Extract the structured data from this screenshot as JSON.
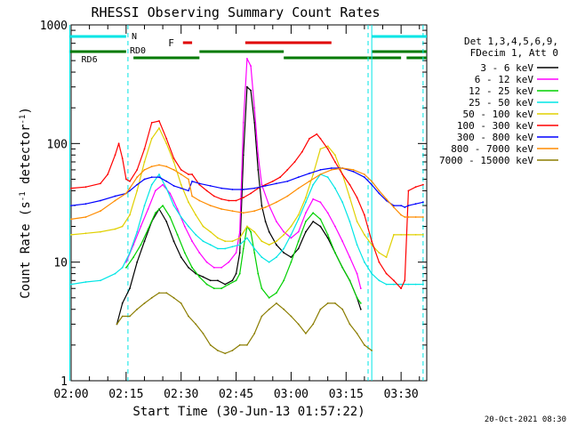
{
  "chart_data": {
    "type": "line",
    "title": "RHESSI Observing Summary Count Rates",
    "xlabel": "Start Time (30-Jun-13 01:57:22)",
    "ylabel_parts": [
      "Count Rate (s",
      "-1",
      " detector",
      "-1",
      ")"
    ],
    "yscale": "log",
    "ylim": [
      1,
      1000
    ],
    "xlim": [
      0,
      97
    ],
    "x_unit": "minutes after 02:00 UT",
    "x_tick_labels": [
      "02:00",
      "02:15",
      "02:30",
      "02:45",
      "03:00",
      "03:15",
      "03:30"
    ],
    "x_tick_minutes": [
      0,
      15,
      30,
      45,
      60,
      75,
      90
    ],
    "y_tick_labels": [
      "1",
      "10",
      "100",
      "1000"
    ],
    "y_tick_values": [
      1,
      10,
      100,
      1000
    ],
    "legend_title": [
      "Det 1,3,4,5,6,9,",
      "FDecim 1, Att 0"
    ],
    "legend_position": "right",
    "timestamp": "20-Oct-2021 08:30",
    "flag_labels": {
      "n": "N",
      "f": "F",
      "rd0": "RD0",
      "rd6": "RD6"
    },
    "flags": {
      "night": {
        "color": "#00e5e5",
        "intervals": [
          [
            -0.5,
            15
          ],
          [
            82,
            97
          ]
        ]
      },
      "flare": {
        "color": "#e00000",
        "intervals": [
          [
            30.5,
            33
          ],
          [
            47.5,
            71
          ]
        ]
      },
      "rd0": {
        "color": "#007a00",
        "intervals": [
          [
            -0.5,
            15
          ],
          [
            35,
            58
          ],
          [
            82,
            97
          ]
        ]
      },
      "rd6": {
        "color": "#007a00",
        "intervals": [
          [
            17,
            35
          ],
          [
            58,
            90
          ],
          [
            91.5,
            97
          ]
        ]
      }
    },
    "night_markers": [
      15.5,
      81,
      96
    ],
    "series": [
      {
        "name": "3 - 6 keV",
        "color": "#000000",
        "x": [
          12.5,
          14,
          16,
          18,
          20,
          22,
          24,
          26,
          28,
          30,
          32,
          34,
          36,
          38,
          40,
          42,
          44,
          45,
          46,
          47,
          48,
          49,
          50,
          51,
          52,
          53,
          54,
          56,
          58,
          60,
          62,
          64,
          66,
          68,
          70,
          72,
          74,
          76,
          78,
          79
        ],
        "y": [
          3,
          4.5,
          6,
          10,
          15,
          22,
          28,
          22,
          15,
          11,
          9,
          8,
          7.5,
          7,
          7,
          6.5,
          7,
          8,
          12,
          80,
          300,
          280,
          150,
          60,
          30,
          22,
          18,
          14,
          12,
          11,
          13,
          18,
          22,
          20,
          16,
          12,
          9,
          7,
          5,
          4
        ]
      },
      {
        "name": "6 - 12 keV",
        "color": "#ff00ff",
        "x": [
          15,
          17,
          19,
          21,
          23,
          25,
          27,
          29,
          31,
          33,
          35,
          37,
          39,
          41,
          43,
          45,
          46,
          47,
          48,
          49,
          50,
          51,
          52,
          54,
          56,
          58,
          60,
          62,
          64,
          66,
          68,
          70,
          72,
          74,
          76,
          78,
          79
        ],
        "y": [
          10,
          14,
          20,
          28,
          40,
          45,
          38,
          28,
          20,
          15,
          12,
          10,
          9,
          9,
          10,
          12,
          18,
          150,
          520,
          450,
          200,
          80,
          45,
          30,
          22,
          18,
          16,
          18,
          26,
          34,
          32,
          26,
          20,
          15,
          11,
          8,
          6
        ]
      },
      {
        "name": "12 - 25 keV",
        "color": "#00d000",
        "x": [
          15,
          17,
          19,
          21,
          23,
          25,
          27,
          29,
          31,
          33,
          35,
          37,
          39,
          41,
          43,
          45,
          46,
          47,
          48,
          49,
          50,
          51,
          52,
          54,
          56,
          58,
          60,
          62,
          64,
          66,
          68,
          70,
          72,
          74,
          76,
          78,
          79
        ],
        "y": [
          9,
          11,
          14,
          19,
          26,
          30,
          24,
          17,
          12,
          9,
          7.5,
          6.5,
          6,
          6,
          6.5,
          7,
          8,
          13,
          20,
          18,
          12,
          8,
          6,
          5,
          5.5,
          7,
          10,
          15,
          22,
          26,
          23,
          17,
          12,
          9,
          7,
          5,
          4.5
        ]
      },
      {
        "name": "25 - 50 keV",
        "color": "#00e5e5",
        "x": [
          0,
          4,
          8,
          12,
          14,
          16,
          18,
          20,
          22,
          24,
          26,
          28,
          30,
          32,
          34,
          36,
          38,
          40,
          42,
          44,
          46,
          48,
          50,
          52,
          54,
          56,
          58,
          60,
          62,
          64,
          66,
          68,
          70,
          72,
          74,
          76,
          78,
          80,
          82,
          84,
          86,
          88,
          90,
          92,
          94,
          96
        ],
        "y": [
          6.5,
          6.8,
          7,
          8,
          9,
          12,
          18,
          30,
          45,
          55,
          42,
          30,
          24,
          20,
          17,
          15,
          14,
          13,
          13,
          13.5,
          14,
          16,
          13,
          11,
          10,
          11,
          13,
          17,
          23,
          32,
          45,
          55,
          52,
          42,
          32,
          22,
          14,
          10,
          8,
          7,
          6.5,
          6.5,
          6.5,
          6.5,
          6.5,
          6.5
        ]
      },
      {
        "name": "50 - 100 keV",
        "color": "#e0d000",
        "x": [
          0,
          4,
          8,
          12,
          14,
          16,
          18,
          20,
          22,
          24,
          26,
          28,
          30,
          32,
          34,
          36,
          38,
          40,
          42,
          44,
          46,
          48,
          50,
          52,
          54,
          56,
          58,
          60,
          62,
          64,
          66,
          68,
          70,
          72,
          74,
          76,
          78,
          80,
          82,
          84,
          86,
          88,
          90,
          92,
          94,
          96
        ],
        "y": [
          17,
          17.5,
          18,
          19,
          20,
          25,
          40,
          70,
          110,
          135,
          100,
          70,
          45,
          32,
          25,
          20,
          18,
          16,
          15,
          15,
          16,
          20,
          18,
          15,
          14,
          15,
          17,
          20,
          25,
          35,
          55,
          90,
          95,
          80,
          55,
          35,
          22,
          17,
          14,
          12,
          11,
          17,
          17,
          17,
          17,
          17
        ]
      },
      {
        "name": "100 - 300 keV",
        "color": "#ff0000",
        "x": [
          0,
          4,
          8,
          10,
          12,
          13,
          14,
          15,
          16,
          18,
          20,
          22,
          24,
          26,
          28,
          30,
          32,
          33,
          35,
          37,
          39,
          41,
          43,
          45,
          47,
          49,
          51,
          53,
          55,
          57,
          59,
          61,
          63,
          65,
          67,
          68,
          70,
          72,
          74,
          76,
          78,
          80,
          82,
          84,
          86,
          88,
          90,
          91,
          92,
          94,
          96
        ],
        "y": [
          42,
          43,
          46,
          55,
          80,
          100,
          75,
          50,
          48,
          60,
          90,
          150,
          155,
          110,
          75,
          60,
          55,
          55,
          45,
          40,
          36,
          34,
          33,
          33,
          35,
          38,
          42,
          45,
          48,
          52,
          60,
          70,
          85,
          110,
          120,
          110,
          90,
          70,
          55,
          45,
          35,
          25,
          15,
          10,
          8,
          7,
          6,
          7,
          40,
          43,
          45
        ]
      },
      {
        "name": "300 - 800 keV",
        "color": "#0000ff",
        "x": [
          0,
          4,
          8,
          12,
          15,
          16,
          18,
          20,
          22,
          24,
          26,
          28,
          30,
          32,
          33,
          35,
          38,
          41,
          44,
          47,
          50,
          53,
          56,
          59,
          62,
          65,
          68,
          71,
          74,
          77,
          80,
          82,
          84,
          86,
          88,
          90,
          91,
          92,
          94,
          96
        ],
        "y": [
          30,
          31,
          33,
          36,
          38,
          40,
          45,
          50,
          52,
          52,
          48,
          44,
          42,
          40,
          48,
          46,
          44,
          42,
          41,
          41,
          42,
          44,
          46,
          48,
          52,
          56,
          60,
          62,
          62,
          58,
          52,
          45,
          38,
          33,
          30,
          30,
          29,
          30,
          31,
          32
        ]
      },
      {
        "name": "800 - 7000 keV",
        "color": "#ff8c00",
        "x": [
          0,
          4,
          8,
          12,
          15,
          16,
          18,
          20,
          22,
          24,
          26,
          28,
          30,
          32,
          33,
          35,
          38,
          41,
          44,
          47,
          50,
          53,
          56,
          59,
          62,
          65,
          68,
          71,
          74,
          77,
          80,
          82,
          84,
          86,
          88,
          90,
          91,
          92,
          94,
          96
        ],
        "y": [
          23,
          24,
          27,
          33,
          38,
          42,
          52,
          60,
          64,
          66,
          64,
          60,
          55,
          50,
          36,
          33,
          30,
          28,
          27,
          26,
          27,
          29,
          32,
          36,
          42,
          48,
          55,
          60,
          62,
          60,
          55,
          48,
          40,
          34,
          29,
          25,
          24,
          24,
          24,
          24
        ]
      },
      {
        "name": "7000 - 15000 keV",
        "color": "#8b7d00",
        "x": [
          12.5,
          14,
          16,
          18,
          20,
          22,
          24,
          26,
          28,
          30,
          32,
          34,
          36,
          38,
          40,
          42,
          44,
          46,
          48,
          50,
          52,
          54,
          56,
          58,
          60,
          62,
          64,
          66,
          68,
          70,
          72,
          74,
          76,
          78,
          80,
          82
        ],
        "y": [
          3,
          3.5,
          3.5,
          4,
          4.5,
          5,
          5.5,
          5.5,
          5,
          4.5,
          3.5,
          3,
          2.5,
          2,
          1.8,
          1.7,
          1.8,
          2,
          2,
          2.5,
          3.5,
          4,
          4.5,
          4,
          3.5,
          3,
          2.5,
          3,
          4,
          4.5,
          4.5,
          4,
          3,
          2.5,
          2,
          1.8
        ]
      }
    ]
  }
}
